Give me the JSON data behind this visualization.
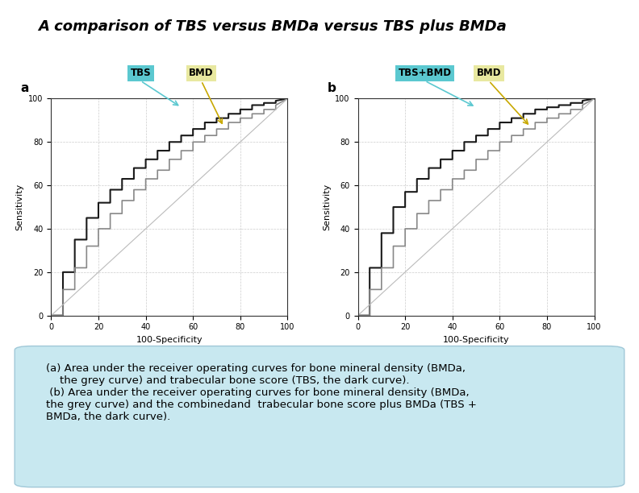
{
  "title": "A comparison of TBS versus BMDa versus TBS plus BMDa",
  "title_fontsize": 13,
  "title_style": "italic",
  "title_weight": "bold",
  "background_color": "#ffffff",
  "label_a": "a",
  "label_b": "b",
  "xlabel": "100-Specificity",
  "ylabel": "Sensitivity",
  "yticks": [
    0,
    20,
    40,
    60,
    80,
    100
  ],
  "xticks": [
    0,
    20,
    40,
    60,
    80,
    100
  ],
  "legend_a": [
    {
      "label": "TBS",
      "color": "#5bc8d0",
      "text_color": "#000000"
    },
    {
      "label": "BMD",
      "color": "#e8e8a0",
      "text_color": "#000000"
    }
  ],
  "legend_b": [
    {
      "label": "TBS+BMD",
      "color": "#5bc8d0",
      "text_color": "#000000"
    },
    {
      "label": "BMD",
      "color": "#e8e8a0",
      "text_color": "#000000"
    }
  ],
  "annotation_text": "(a) Area under the receiver operating curves for bone mineral density (BMDa,\n    the grey curve) and trabecular bone score (TBS, the dark curve).\n (b) Area under the receiver operating curves for bone mineral density (BMDa,\nthe grey curve) and the combinedand  trabecular bone score plus BMDa (TBS +\nBMDa, the dark curve).",
  "annotation_box_color": "#c8e8f0",
  "annotation_fontsize": 9.5,
  "dark_curve_color": "#1a1a1a",
  "grey_curve_color": "#888888",
  "diagonal_color": "#bbbbbb",
  "grid_color": "#cccccc",
  "tbs_arrow_color": "#5bc8d0",
  "bmd_arrow_color": "#c8a800"
}
